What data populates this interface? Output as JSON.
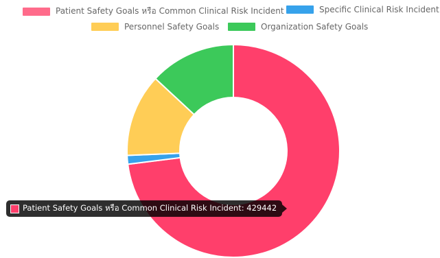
{
  "chart_data": {
    "type": "pie",
    "title": "",
    "legend_position": "top",
    "series": [
      {
        "name": "Patient Safety Goals หรือ Common Clinical Risk Incident",
        "value": 429442,
        "color": "#ff3f6b"
      },
      {
        "name": "Specific Clinical Risk Incident",
        "value": 7800,
        "color": "#36a2eb"
      },
      {
        "name": "Personnel Safety Goals",
        "value": 74000,
        "color": "#ffcd56"
      },
      {
        "name": "Organization Safety Goals",
        "value": 77000,
        "color": "#3cc95a"
      }
    ],
    "tooltip": {
      "text": "Patient Safety Goals หรือ Common Clinical Risk Incident: 429442",
      "color": "#ff3f6b"
    }
  }
}
